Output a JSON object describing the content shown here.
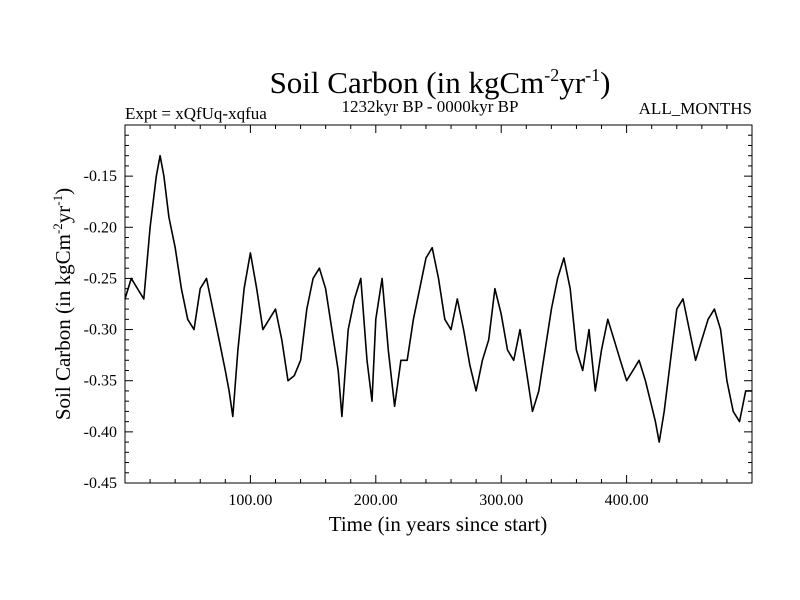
{
  "chart_data": {
    "type": "line",
    "title": {
      "pre": "Soil Carbon (in kgCm",
      "sup1": "-2",
      "mid": "yr",
      "sup2": "-1",
      "post": ")"
    },
    "subtitle_left": "Expt = xQfUq-xqfua",
    "subtitle_center": "1232kyr BP - 0000kyr BP",
    "subtitle_right": "ALL_MONTHS",
    "xlabel": "Time (in years since start)",
    "ylabel": {
      "pre": "Soil Carbon (in kgCm",
      "sup1": "-2",
      "mid": "yr",
      "sup2": "-1",
      "post": ")"
    },
    "xlim": [
      0,
      500
    ],
    "ylim": [
      -0.45,
      -0.1
    ],
    "xticks": [
      100,
      200,
      300,
      400
    ],
    "xtick_labels": [
      "100.00",
      "200.00",
      "300.00",
      "400.00"
    ],
    "yticks": [
      -0.45,
      -0.4,
      -0.35,
      -0.3,
      -0.25,
      -0.2,
      -0.15
    ],
    "ytick_labels": [
      "-0.45",
      "-0.40",
      "-0.35",
      "-0.30",
      "-0.25",
      "-0.20",
      "-0.15"
    ],
    "series": [
      {
        "name": "Soil Carbon",
        "color": "#000000",
        "x": [
          0,
          5,
          10,
          15,
          20,
          25,
          28,
          31,
          35,
          40,
          45,
          50,
          55,
          60,
          65,
          70,
          75,
          80,
          83,
          86,
          90,
          95,
          100,
          105,
          110,
          115,
          120,
          125,
          130,
          135,
          140,
          145,
          150,
          155,
          160,
          165,
          170,
          173,
          178,
          183,
          188,
          193,
          197,
          200,
          205,
          210,
          215,
          220,
          225,
          230,
          235,
          240,
          245,
          250,
          255,
          260,
          265,
          270,
          275,
          280,
          285,
          290,
          295,
          300,
          305,
          310,
          315,
          320,
          325,
          330,
          335,
          340,
          345,
          350,
          355,
          360,
          365,
          370,
          375,
          380,
          385,
          390,
          395,
          400,
          405,
          410,
          415,
          420,
          423,
          426,
          430,
          435,
          440,
          445,
          450,
          455,
          460,
          465,
          470,
          475,
          480,
          485,
          490,
          495,
          500
        ],
        "y": [
          -0.27,
          -0.25,
          -0.26,
          -0.27,
          -0.2,
          -0.15,
          -0.13,
          -0.15,
          -0.19,
          -0.22,
          -0.26,
          -0.29,
          -0.3,
          -0.26,
          -0.25,
          -0.28,
          -0.31,
          -0.34,
          -0.36,
          -0.385,
          -0.32,
          -0.26,
          -0.225,
          -0.26,
          -0.3,
          -0.29,
          -0.28,
          -0.31,
          -0.35,
          -0.345,
          -0.33,
          -0.28,
          -0.25,
          -0.24,
          -0.26,
          -0.3,
          -0.34,
          -0.385,
          -0.3,
          -0.27,
          -0.25,
          -0.33,
          -0.37,
          -0.29,
          -0.25,
          -0.32,
          -0.375,
          -0.33,
          -0.33,
          -0.29,
          -0.26,
          -0.23,
          -0.22,
          -0.25,
          -0.29,
          -0.3,
          -0.27,
          -0.3,
          -0.335,
          -0.36,
          -0.33,
          -0.31,
          -0.26,
          -0.285,
          -0.32,
          -0.33,
          -0.3,
          -0.34,
          -0.38,
          -0.36,
          -0.32,
          -0.28,
          -0.25,
          -0.23,
          -0.26,
          -0.32,
          -0.34,
          -0.3,
          -0.36,
          -0.32,
          -0.29,
          -0.31,
          -0.33,
          -0.35,
          -0.34,
          -0.33,
          -0.35,
          -0.375,
          -0.39,
          -0.41,
          -0.38,
          -0.33,
          -0.28,
          -0.27,
          -0.3,
          -0.33,
          -0.31,
          -0.29,
          -0.28,
          -0.3,
          -0.35,
          -0.38,
          -0.39,
          -0.36,
          -0.36
        ]
      }
    ]
  }
}
